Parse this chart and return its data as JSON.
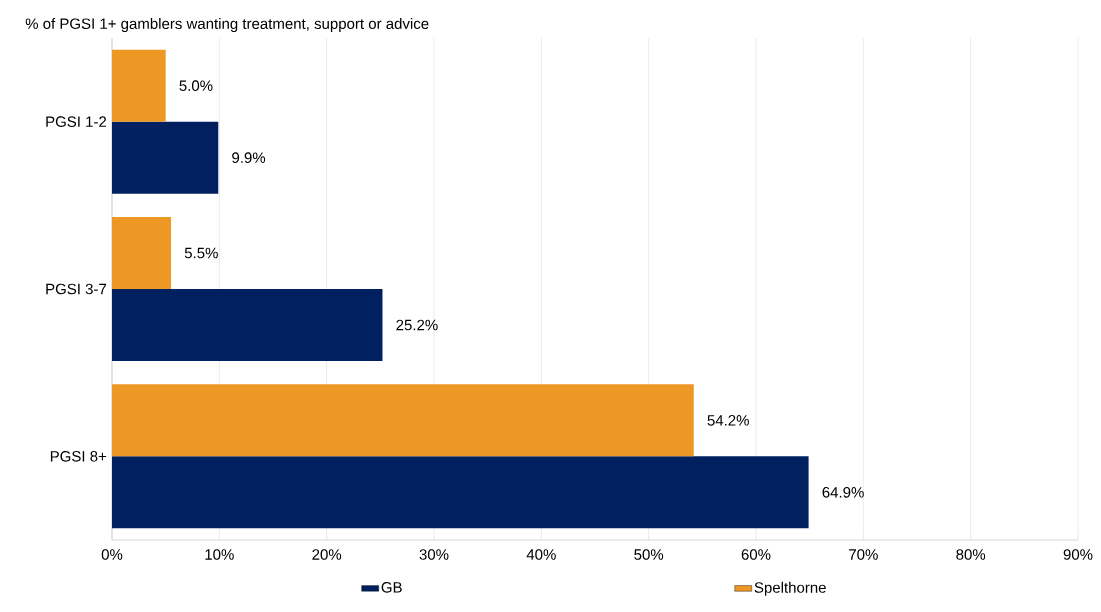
{
  "chart_data": {
    "type": "bar",
    "orientation": "horizontal",
    "title": "% of PGSI 1+ gamblers wanting treatment, support or advice",
    "categories": [
      "PGSI 1-2",
      "PGSI 3-7",
      "PGSI 8+"
    ],
    "series": [
      {
        "name": "GB",
        "color": "#002060",
        "values": [
          9.9,
          25.2,
          64.9
        ],
        "value_labels": [
          "9.9%",
          "25.2%",
          "64.9%"
        ]
      },
      {
        "name": "Spelthorne",
        "color": "#ed9725",
        "values": [
          5.0,
          5.5,
          54.2
        ],
        "value_labels": [
          "5.0%",
          "5.5%",
          "54.2%"
        ]
      }
    ],
    "xlim": [
      0,
      90
    ],
    "xticks": [
      {
        "value": 0,
        "label": "0%"
      },
      {
        "value": 10,
        "label": "10%"
      },
      {
        "value": 20,
        "label": "20%"
      },
      {
        "value": 30,
        "label": "30%"
      },
      {
        "value": 40,
        "label": "40%"
      },
      {
        "value": 50,
        "label": "50%"
      },
      {
        "value": 60,
        "label": "60%"
      },
      {
        "value": 70,
        "label": "70%"
      },
      {
        "value": 80,
        "label": "80%"
      },
      {
        "value": 90,
        "label": "90%"
      }
    ],
    "grid": "x",
    "legend": "bottom"
  }
}
